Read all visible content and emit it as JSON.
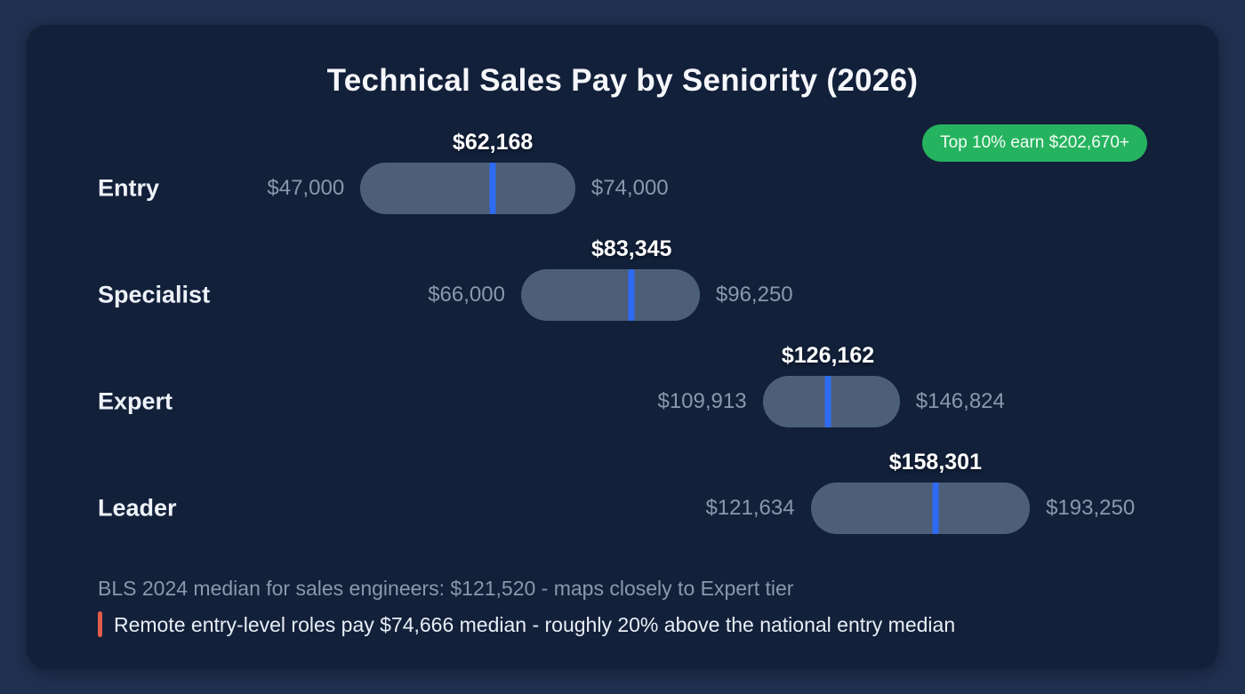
{
  "page": {
    "title": "Technical Sales Pay by Seniority (2026)",
    "badge": "Top 10% earn $202,670+",
    "notes": {
      "bls": "BLS 2024 median for sales engineers: $121,520 - maps closely to Expert tier",
      "remote": "Remote entry-level roles pay $74,666 median - roughly 20% above the national entry median"
    }
  },
  "colors": {
    "page_background": "#203050",
    "card_background": "#12203a",
    "bar": "#4d5f78",
    "median_tick": "#2e6bf2",
    "badge_green": "#26b35f",
    "note_accent": "#e25c49",
    "muted_text": "#8b97ad",
    "title_text": "#f5f7fa"
  },
  "chart_data": {
    "type": "bar",
    "variant": "horizontal-range-bars",
    "title": "Technical Sales Pay by Seniority (2026)",
    "unit": "USD per year",
    "categories": [
      "Entry",
      "Specialist",
      "Expert",
      "Leader"
    ],
    "series": [
      {
        "name": "min",
        "values": [
          47000,
          66000,
          109913,
          121634
        ]
      },
      {
        "name": "median",
        "values": [
          62168,
          83345,
          126162,
          158301
        ]
      },
      {
        "name": "max",
        "values": [
          74000,
          96250,
          146824,
          193250
        ]
      }
    ],
    "rows": [
      {
        "label": "Entry",
        "min": 47000,
        "median": 62168,
        "max": 74000,
        "min_label": "$47,000",
        "median_label": "$62,168",
        "max_label": "$74,000"
      },
      {
        "label": "Specialist",
        "min": 66000,
        "median": 83345,
        "max": 96250,
        "min_label": "$66,000",
        "median_label": "$83,345",
        "max_label": "$96,250"
      },
      {
        "label": "Expert",
        "min": 109913,
        "median": 126162,
        "max": 146824,
        "min_label": "$109,913",
        "median_label": "$126,162",
        "max_label": "$146,824"
      },
      {
        "label": "Leader",
        "min": 121634,
        "median": 158301,
        "max": 193250,
        "min_label": "$121,634",
        "median_label": "$158,301",
        "max_label": "$193,250"
      }
    ],
    "top_decile_note": "Top 10% earn $202,670+",
    "annotations": [
      "BLS 2024 median for sales engineers: $121,520 - maps closely to Expert tier",
      "Remote entry-level roles pay $74,666 median - roughly 20% above the national entry median"
    ],
    "xlim": [
      43000,
      212000
    ],
    "grid": false,
    "legend": false
  }
}
